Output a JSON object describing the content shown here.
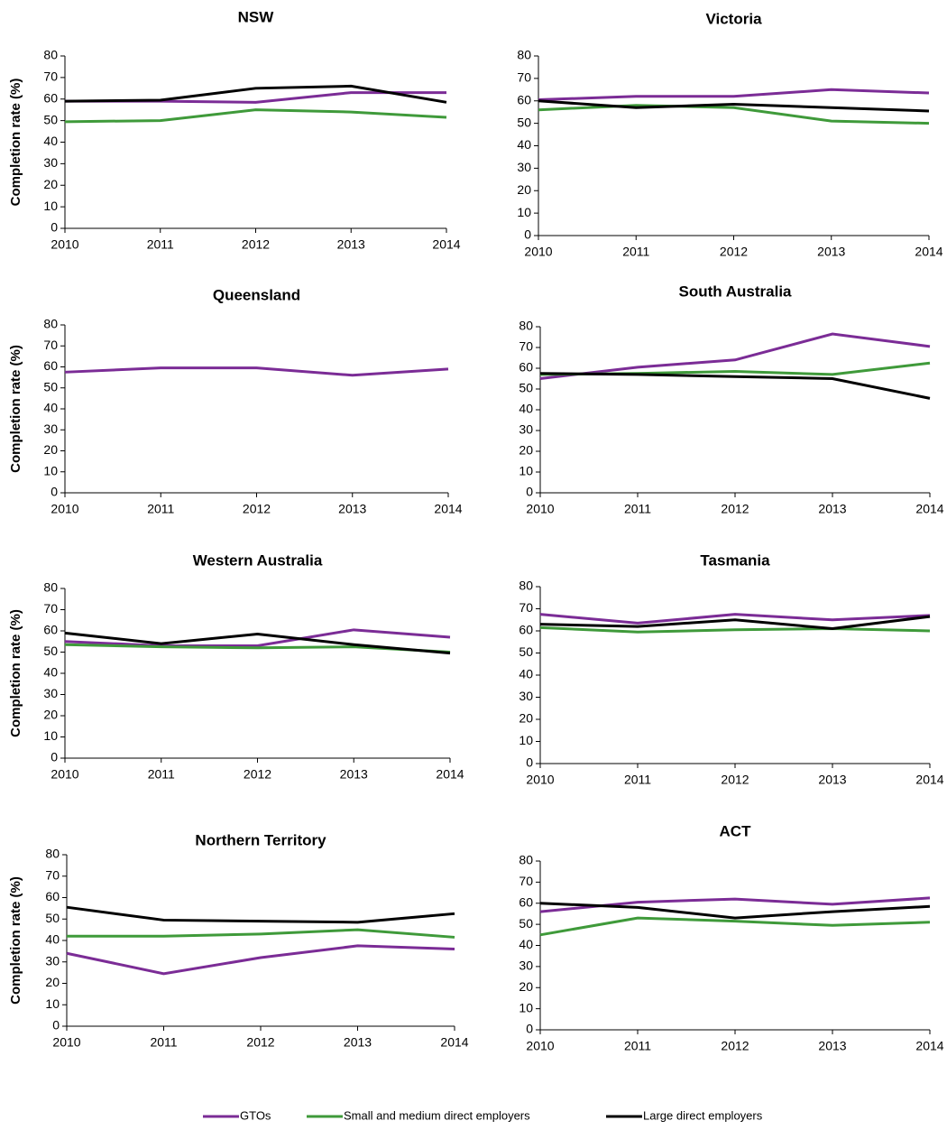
{
  "chart_data": [
    {
      "type": "line",
      "title": "NSW",
      "y_label": "Completion rate (%)",
      "x": [
        2010,
        2011,
        2012,
        2013,
        2014
      ],
      "xlim": [
        2010,
        2014
      ],
      "xticks": [
        2010,
        2011,
        2012,
        2013,
        2014
      ],
      "ylim": [
        0,
        80
      ],
      "yticks": [
        0,
        10,
        20,
        30,
        40,
        50,
        60,
        70,
        80
      ],
      "series": [
        {
          "name": "GTOs",
          "color": "#7b2c96",
          "values": [
            59,
            59,
            58.5,
            63,
            63
          ]
        },
        {
          "name": "Small and medium direct employers",
          "color": "#3f9a3a",
          "values": [
            49.5,
            50,
            55,
            54,
            51.5
          ]
        },
        {
          "name": "Large direct employers",
          "color": "#000000",
          "values": [
            59,
            59.5,
            65,
            66,
            58.5
          ]
        }
      ]
    },
    {
      "type": "line",
      "title": "Victoria",
      "x": [
        2010,
        2011,
        2012,
        2013,
        2014
      ],
      "xlim": [
        2010,
        2014
      ],
      "xticks": [
        2010,
        2011,
        2012,
        2013,
        2014
      ],
      "ylim": [
        0,
        80
      ],
      "yticks": [
        0,
        10,
        20,
        30,
        40,
        50,
        60,
        70,
        80
      ],
      "series": [
        {
          "name": "GTOs",
          "color": "#7b2c96",
          "values": [
            60.5,
            62,
            62,
            65,
            63.5
          ]
        },
        {
          "name": "Small and medium direct employers",
          "color": "#3f9a3a",
          "values": [
            56,
            58,
            57,
            51,
            50
          ]
        },
        {
          "name": "Large direct employers",
          "color": "#000000",
          "values": [
            60,
            57,
            58.5,
            57,
            55.5
          ]
        }
      ]
    },
    {
      "type": "line",
      "title": "Queensland",
      "y_label": "Completion rate (%)",
      "x": [
        2010,
        2011,
        2012,
        2013,
        2014
      ],
      "xlim": [
        2010,
        2014
      ],
      "xticks": [
        2010,
        2011,
        2012,
        2013,
        2014
      ],
      "ylim": [
        0,
        80
      ],
      "yticks": [
        0,
        10,
        20,
        30,
        40,
        50,
        60,
        70,
        80
      ],
      "series": [
        {
          "name": "GTOs",
          "color": "#7b2c96",
          "values": [
            57.5,
            59.5,
            59.5,
            56,
            59
          ]
        }
      ]
    },
    {
      "type": "line",
      "title": "South Australia",
      "x": [
        2010,
        2011,
        2012,
        2013,
        2014
      ],
      "xlim": [
        2010,
        2014
      ],
      "xticks": [
        2010,
        2011,
        2012,
        2013,
        2014
      ],
      "ylim": [
        0,
        80
      ],
      "yticks": [
        0,
        10,
        20,
        30,
        40,
        50,
        60,
        70,
        80
      ],
      "series": [
        {
          "name": "GTOs",
          "color": "#7b2c96",
          "values": [
            55,
            60.5,
            64,
            76.5,
            70.5
          ]
        },
        {
          "name": "Small and medium direct employers",
          "color": "#3f9a3a",
          "values": [
            57,
            57.5,
            58.5,
            57,
            62.5
          ]
        },
        {
          "name": "Large direct employers",
          "color": "#000000",
          "values": [
            57.5,
            57,
            56,
            55,
            45.5
          ]
        }
      ]
    },
    {
      "type": "line",
      "title": "Western Australia",
      "y_label": "Completion rate (%)",
      "x": [
        2010,
        2011,
        2012,
        2013,
        2014
      ],
      "xlim": [
        2010,
        2014
      ],
      "xticks": [
        2010,
        2011,
        2012,
        2013,
        2014
      ],
      "ylim": [
        0,
        80
      ],
      "yticks": [
        0,
        10,
        20,
        30,
        40,
        50,
        60,
        70,
        80
      ],
      "series": [
        {
          "name": "GTOs",
          "color": "#7b2c96",
          "values": [
            55,
            53,
            53,
            60.5,
            57
          ]
        },
        {
          "name": "Small and medium direct employers",
          "color": "#3f9a3a",
          "values": [
            53.5,
            52.5,
            52,
            52.5,
            50
          ]
        },
        {
          "name": "Large direct employers",
          "color": "#000000",
          "values": [
            59,
            54,
            58.5,
            53.5,
            49.5
          ]
        }
      ]
    },
    {
      "type": "line",
      "title": "Tasmania",
      "x": [
        2010,
        2011,
        2012,
        2013,
        2014
      ],
      "xlim": [
        2010,
        2014
      ],
      "xticks": [
        2010,
        2011,
        2012,
        2013,
        2014
      ],
      "ylim": [
        0,
        80
      ],
      "yticks": [
        0,
        10,
        20,
        30,
        40,
        50,
        60,
        70,
        80
      ],
      "series": [
        {
          "name": "GTOs",
          "color": "#7b2c96",
          "values": [
            67.5,
            63.5,
            67.5,
            65,
            67
          ]
        },
        {
          "name": "Small and medium direct employers",
          "color": "#3f9a3a",
          "values": [
            61.5,
            59.5,
            60.5,
            61,
            60
          ]
        },
        {
          "name": "Large direct employers",
          "color": "#000000",
          "values": [
            63,
            62,
            65,
            61,
            66.5
          ]
        }
      ]
    },
    {
      "type": "line",
      "title": "Northern Territory",
      "y_label": "Completion rate (%)",
      "x": [
        2010,
        2011,
        2012,
        2013,
        2014
      ],
      "xlim": [
        2010,
        2014
      ],
      "xticks": [
        2010,
        2011,
        2012,
        2013,
        2014
      ],
      "ylim": [
        0,
        80
      ],
      "yticks": [
        0,
        10,
        20,
        30,
        40,
        50,
        60,
        70,
        80
      ],
      "series": [
        {
          "name": "GTOs",
          "color": "#7b2c96",
          "values": [
            34,
            24.5,
            32,
            37.5,
            36
          ]
        },
        {
          "name": "Small and medium direct employers",
          "color": "#3f9a3a",
          "values": [
            42,
            42,
            43,
            45,
            41.5
          ]
        },
        {
          "name": "Large direct employers",
          "color": "#000000",
          "values": [
            55.5,
            49.5,
            49,
            48.5,
            52.5
          ]
        }
      ]
    },
    {
      "type": "line",
      "title": "ACT",
      "x": [
        2010,
        2011,
        2012,
        2013,
        2014
      ],
      "xlim": [
        2010,
        2014
      ],
      "xticks": [
        2010,
        2011,
        2012,
        2013,
        2014
      ],
      "ylim": [
        0,
        80
      ],
      "yticks": [
        0,
        10,
        20,
        30,
        40,
        50,
        60,
        70,
        80
      ],
      "series": [
        {
          "name": "GTOs",
          "color": "#7b2c96",
          "values": [
            56,
            60.5,
            62,
            59.5,
            62.5
          ]
        },
        {
          "name": "Small and medium direct employers",
          "color": "#3f9a3a",
          "values": [
            45,
            53,
            51.5,
            49.5,
            51
          ]
        },
        {
          "name": "Large direct employers",
          "color": "#000000",
          "values": [
            60,
            58,
            53,
            56,
            58.5
          ]
        }
      ]
    }
  ]
}
